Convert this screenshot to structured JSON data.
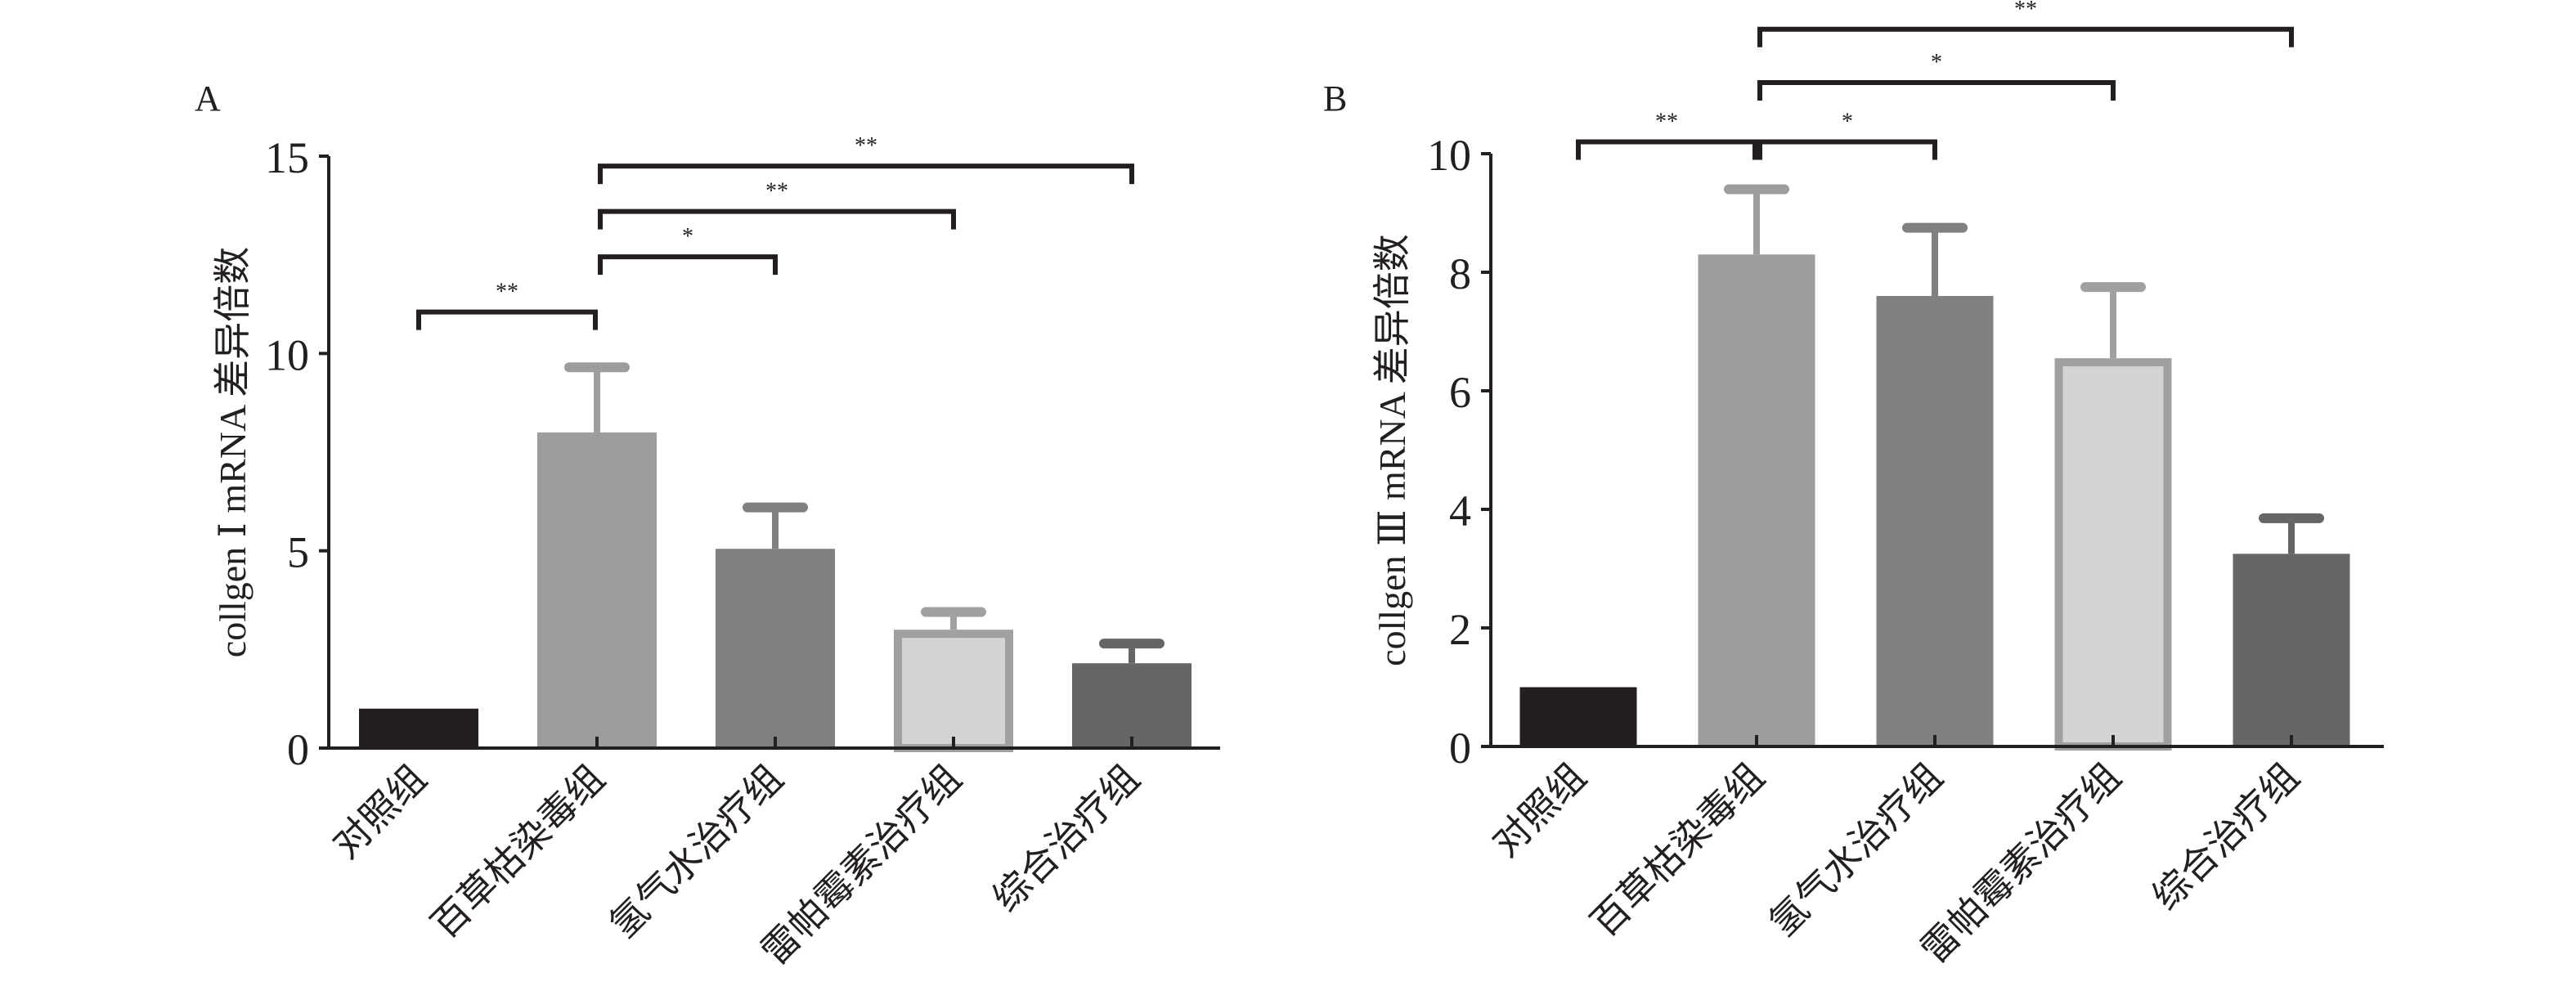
{
  "chart_data": [
    {
      "type": "bar",
      "panel_label": "A",
      "ylabel": "collgen Ⅰ mRNA 差异倍数",
      "xlabel": "",
      "ylim": [
        0,
        15
      ],
      "yticks": [
        0,
        5,
        10,
        15
      ],
      "categories": [
        "对照组",
        "百草枯染毒组",
        "氢气水治疗组",
        "雷帕霉素治疗组",
        "综合治疗组"
      ],
      "values": [
        1.0,
        8.0,
        5.05,
        3.0,
        2.15
      ],
      "error_upper": [
        1.0,
        9.65,
        6.1,
        3.45,
        2.65
      ],
      "colors": [
        "#231f20",
        "#9d9d9d",
        "#808080",
        "#d4d4d4",
        "#666666"
      ],
      "edge_colors": [
        "#231f20",
        "#9d9d9d",
        "#808080",
        "#a0a0a0",
        "#666666"
      ],
      "significance": [
        {
          "from": 0,
          "to": 1,
          "label": "**",
          "level": 11.05
        },
        {
          "from": 1,
          "to": 2,
          "label": "*",
          "level": 12.45
        },
        {
          "from": 1,
          "to": 3,
          "label": "**",
          "level": 13.6
        },
        {
          "from": 1,
          "to": 4,
          "label": "**",
          "level": 14.75
        }
      ]
    },
    {
      "type": "bar",
      "panel_label": "B",
      "ylabel": "collgen Ⅲ mRNA 差异倍数",
      "xlabel": "",
      "ylim": [
        0,
        10
      ],
      "yticks": [
        0,
        2,
        4,
        6,
        8,
        10
      ],
      "categories": [
        "对照组",
        "百草枯染毒组",
        "氢气水治疗组",
        "雷帕霉素治疗组",
        "综合治疗组"
      ],
      "values": [
        1.0,
        8.3,
        7.6,
        6.55,
        3.25
      ],
      "error_upper": [
        1.0,
        9.4,
        8.75,
        7.75,
        3.85
      ],
      "colors": [
        "#231f20",
        "#9d9d9d",
        "#808080",
        "#d4d4d4",
        "#666666"
      ],
      "edge_colors": [
        "#231f20",
        "#9d9d9d",
        "#808080",
        "#a0a0a0",
        "#666666"
      ],
      "significance": [
        {
          "from": 0,
          "to": 1,
          "label": "**",
          "level": 10.2
        },
        {
          "from": 1,
          "to": 2,
          "label": "*",
          "level": 10.2
        },
        {
          "from": 1,
          "to": 3,
          "label": "*",
          "level": 11.2
        },
        {
          "from": 1,
          "to": 4,
          "label": "**",
          "level": 12.1
        }
      ]
    }
  ]
}
